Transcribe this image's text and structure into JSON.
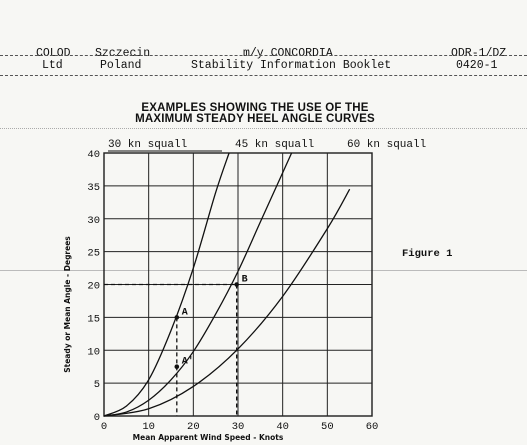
{
  "header": {
    "company_line1": "COLOD",
    "company_line2": "Ltd",
    "city_line1": "Szczecin",
    "city_line2": "Poland",
    "vessel": "m/y CONCORDIA",
    "booklet": "Stability Information Booklet",
    "doc_code": "ODR-1/DZ",
    "doc_number": "0420-1"
  },
  "figure_label": "Figure 1",
  "chart_data": {
    "type": "line",
    "title": "EXAMPLES SHOWING THE USE OF THE MAXIMUM STEADY HEEL ANGLE CURVES",
    "title_lines": [
      "EXAMPLES SHOWING THE USE OF THE",
      "MAXIMUM STEADY HEEL ANGLE CURVES"
    ],
    "xlabel": "Mean Apparent Wind Speed - Knots",
    "ylabel": "Steady or Mean Angle - Degrees",
    "xlim": [
      0,
      60
    ],
    "ylim": [
      0,
      40
    ],
    "xticks": [
      0,
      10,
      20,
      30,
      40,
      50,
      60
    ],
    "yticks": [
      0,
      5,
      10,
      15,
      20,
      25,
      30,
      35,
      40
    ],
    "grid": true,
    "series": [
      {
        "name": "30 kn squall",
        "x": [
          0,
          5,
          10,
          15,
          20,
          25,
          28
        ],
        "y": [
          0,
          1.5,
          5.5,
          13,
          22.5,
          34,
          40
        ]
      },
      {
        "name": "45 kn squall",
        "x": [
          0,
          5,
          10,
          15,
          20,
          25,
          30,
          35,
          40,
          42
        ],
        "y": [
          0,
          0.6,
          2.4,
          5.5,
          9.8,
          15.5,
          22,
          29.5,
          37,
          40
        ]
      },
      {
        "name": "60 kn squall",
        "x": [
          0,
          10,
          20,
          30,
          40,
          50,
          55
        ],
        "y": [
          0,
          1.1,
          4.5,
          10.2,
          18.2,
          28.5,
          34.5
        ]
      }
    ],
    "annotations": [
      {
        "label": "A",
        "x": 16.3,
        "y": 15
      },
      {
        "label": "A'",
        "x": 16.3,
        "y": 7.5
      },
      {
        "label": "B",
        "x": 29.7,
        "y": 20
      }
    ],
    "guide_lines": [
      {
        "from": [
          0,
          20
        ],
        "to": [
          29.7,
          20
        ]
      },
      {
        "from": [
          29.7,
          20
        ],
        "to": [
          29.7,
          0
        ]
      },
      {
        "from": [
          16.3,
          15
        ],
        "to": [
          16.3,
          0
        ]
      }
    ]
  }
}
